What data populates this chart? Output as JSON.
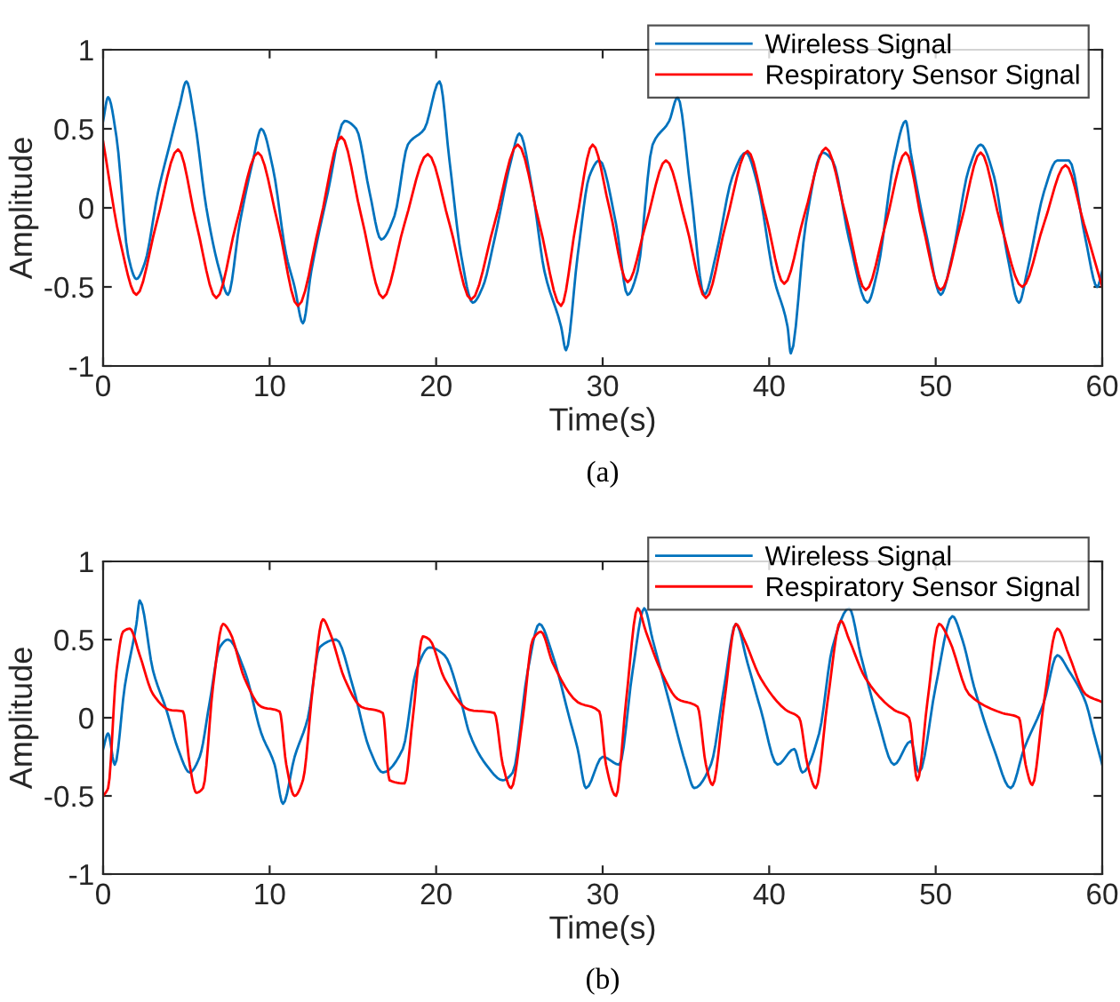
{
  "chart_data": [
    {
      "type": "line",
      "xlabel": "Time(s)",
      "ylabel": "Amplitude",
      "xlim": [
        0,
        60
      ],
      "ylim": [
        -1,
        1
      ],
      "xticks": [
        0,
        10,
        20,
        30,
        40,
        50,
        60
      ],
      "yticks": [
        -1,
        -0.5,
        0,
        0.5,
        1
      ],
      "grid": false,
      "legend": "top right",
      "annotations": [
        "(a)"
      ],
      "series": [
        {
          "name": "Wireless Signal",
          "color": "#0072bd",
          "x": [
            0,
            0.3,
            0.8,
            1.5,
            2,
            2.5,
            3.3,
            4,
            4.6,
            5.0,
            5.5,
            6.2,
            7,
            7.5,
            8.2,
            9,
            9.5,
            10.2,
            11,
            11.5,
            12,
            12.5,
            13.5,
            14.5,
            15.2,
            16,
            16.7,
            17.5,
            18.3,
            19.3,
            20.2,
            20.8,
            21.5,
            22.2,
            22.8,
            23.5,
            24.5,
            25.0,
            25.8,
            26.5,
            27.5,
            27.8,
            28.5,
            29.2,
            29.8,
            30.8,
            31.5,
            32.1,
            33,
            34,
            34.5,
            35.3,
            36.1,
            36.8,
            37.8,
            38.6,
            39.3,
            40.3,
            41.1,
            41.3,
            42.2,
            43.2,
            43.8,
            44.8,
            45.9,
            46.5,
            47.5,
            48.2,
            48.5,
            49.5,
            50.3,
            51,
            52,
            52.7,
            53.5,
            54.3,
            55,
            55.5,
            56.5,
            57.3,
            58,
            59,
            59.7,
            60
          ],
          "values": [
            0.55,
            0.7,
            0.45,
            -0.3,
            -0.45,
            -0.35,
            0.1,
            0.4,
            0.65,
            0.8,
            0.55,
            0,
            -0.4,
            -0.55,
            -0.1,
            0.3,
            0.5,
            0.25,
            -0.3,
            -0.5,
            -0.73,
            -0.4,
            0.1,
            0.55,
            0.5,
            0.1,
            -0.2,
            -0.05,
            0.4,
            0.5,
            0.8,
            0.3,
            -0.3,
            -0.6,
            -0.5,
            -0.2,
            0.3,
            0.47,
            0.1,
            -0.4,
            -0.75,
            -0.9,
            -0.3,
            0.2,
            0.3,
            -0.1,
            -0.55,
            -0.4,
            0.4,
            0.55,
            0.7,
            0.1,
            -0.55,
            -0.3,
            0.2,
            0.35,
            0.15,
            -0.45,
            -0.75,
            -0.92,
            -0.1,
            0.35,
            0.3,
            -0.2,
            -0.6,
            -0.4,
            0.3,
            0.55,
            0.35,
            -0.2,
            -0.55,
            -0.3,
            0.25,
            0.4,
            0.2,
            -0.3,
            -0.6,
            -0.4,
            0.1,
            0.3,
            0.3,
            -0.2,
            -0.5,
            -0.4
          ]
        },
        {
          "name": "Respiratory Sensor Signal",
          "color": "#ff0000",
          "x": [
            0,
            1,
            2,
            3.2,
            4.5,
            5.6,
            6.8,
            8,
            9.3,
            10.5,
            11.7,
            13,
            14.3,
            15.5,
            16.8,
            18.1,
            19.5,
            20.8,
            22.1,
            23.5,
            24.9,
            26.2,
            27.5,
            28.4,
            29.4,
            30.4,
            31.5,
            32.6,
            33.8,
            35,
            36.2,
            37.4,
            38.7,
            39.8,
            40.9,
            42.1,
            43.4,
            44.6,
            45.8,
            47,
            48.2,
            49.2,
            50.3,
            51.5,
            52.7,
            53.9,
            55.2,
            56.5,
            57.8,
            58.9,
            60
          ],
          "values": [
            0.42,
            -0.2,
            -0.55,
            -0.1,
            0.37,
            -0.1,
            -0.57,
            -0.1,
            0.35,
            -0.1,
            -0.62,
            -0.1,
            0.45,
            -0.05,
            -0.57,
            -0.1,
            0.34,
            -0.1,
            -0.58,
            -0.1,
            0.4,
            -0.1,
            -0.62,
            -0.1,
            0.4,
            0,
            -0.47,
            -0.1,
            0.3,
            -0.1,
            -0.57,
            -0.1,
            0.36,
            -0.05,
            -0.48,
            -0.05,
            0.38,
            -0.05,
            -0.52,
            -0.1,
            0.35,
            -0.1,
            -0.52,
            -0.1,
            0.35,
            -0.1,
            -0.5,
            -0.1,
            0.27,
            -0.1,
            -0.5
          ]
        }
      ]
    },
    {
      "type": "line",
      "xlabel": "Time(s)",
      "ylabel": "Amplitude",
      "xlim": [
        0,
        60
      ],
      "ylim": [
        -1,
        1
      ],
      "xticks": [
        0,
        10,
        20,
        30,
        40,
        50,
        60
      ],
      "yticks": [
        -1,
        -0.5,
        0,
        0.5,
        1
      ],
      "grid": false,
      "legend": "top right",
      "annotations": [
        "(b)"
      ],
      "series": [
        {
          "name": "Wireless Signal",
          "color": "#0072bd",
          "x": [
            0,
            0.3,
            0.7,
            1.3,
            2,
            2.2,
            3,
            3.8,
            4.5,
            5.2,
            5.8,
            6.4,
            7,
            7.5,
            8.5,
            9.5,
            10.3,
            10.8,
            11.5,
            12.3,
            13,
            14,
            15,
            16,
            16.8,
            18,
            18.8,
            19.6,
            20.5,
            21.5,
            22,
            23,
            24,
            24.6,
            25.5,
            26.2,
            27,
            28,
            28.5,
            29,
            30,
            31,
            31.8,
            32.5,
            33,
            34,
            35,
            35.5,
            36.5,
            37.3,
            38,
            38.7,
            39.5,
            40.5,
            41.5,
            42,
            43,
            43.8,
            44.8,
            45.5,
            46.5,
            47.5,
            48.5,
            49,
            50,
            51,
            51.6,
            52.3,
            53.5,
            54.5,
            55.3,
            56.5,
            57.3,
            58,
            59,
            59.5,
            60
          ],
          "values": [
            -0.2,
            -0.1,
            -0.3,
            0.2,
            0.6,
            0.75,
            0.3,
            0.05,
            -0.2,
            -0.35,
            -0.25,
            0.1,
            0.45,
            0.5,
            0.3,
            -0.1,
            -0.3,
            -0.55,
            -0.25,
            0,
            0.45,
            0.5,
            0.2,
            -0.2,
            -0.35,
            -0.2,
            0.3,
            0.45,
            0.4,
            0.1,
            -0.1,
            -0.3,
            -0.4,
            -0.35,
            0.3,
            0.6,
            0.4,
            0,
            -0.2,
            -0.45,
            -0.25,
            -0.3,
            0.3,
            0.7,
            0.5,
            0.1,
            -0.3,
            -0.45,
            -0.3,
            0.2,
            0.6,
            0.35,
            0.05,
            -0.3,
            -0.2,
            -0.35,
            -0.1,
            0.45,
            0.7,
            0.4,
            0,
            -0.3,
            -0.15,
            -0.35,
            0.2,
            0.65,
            0.5,
            0.2,
            -0.2,
            -0.45,
            -0.2,
            0.1,
            0.4,
            0.3,
            0.1,
            -0.1,
            -0.3
          ]
        },
        {
          "name": "Respiratory Sensor Signal",
          "color": "#ff0000",
          "x": [
            0,
            0.3,
            0.8,
            1.2,
            1.6,
            2.2,
            3,
            4,
            4.8,
            5.2,
            5.6,
            6,
            6.6,
            7.2,
            7.6,
            8.5,
            9.5,
            10.6,
            11.0,
            11.5,
            12.0,
            12.6,
            13.2,
            13.6,
            14.5,
            15.5,
            16.8,
            17.2,
            18.1,
            18.6,
            19.2,
            19.6,
            20.5,
            22,
            23.5,
            24.0,
            24.5,
            25.2,
            25.8,
            26.3,
            27,
            28.5,
            29.8,
            30.2,
            30.8,
            31.4,
            32.1,
            32.6,
            33.5,
            34.5,
            35.7,
            36.2,
            36.6,
            37.3,
            38,
            38.5,
            39.5,
            41,
            41.8,
            42.3,
            42.8,
            43.5,
            44.3,
            44.8,
            45.8,
            47.5,
            48.4,
            48.9,
            49.5,
            50.2,
            50.8,
            52,
            54,
            55,
            55.4,
            55.8,
            56.5,
            57.3,
            58,
            59,
            60
          ],
          "values": [
            -0.5,
            -0.45,
            0.3,
            0.55,
            0.57,
            0.4,
            0.15,
            0.05,
            0.04,
            -0.3,
            -0.48,
            -0.45,
            0.2,
            0.6,
            0.55,
            0.25,
            0.07,
            0.04,
            -0.3,
            -0.5,
            -0.4,
            0.2,
            0.63,
            0.55,
            0.25,
            0.07,
            0.03,
            -0.4,
            -0.42,
            0.0,
            0.52,
            0.5,
            0.25,
            0.05,
            0.03,
            -0.3,
            -0.45,
            0.0,
            0.5,
            0.55,
            0.35,
            0.1,
            0.04,
            -0.3,
            -0.5,
            0.1,
            0.7,
            0.55,
            0.3,
            0.12,
            0.07,
            -0.3,
            -0.43,
            0.1,
            0.6,
            0.5,
            0.25,
            0.05,
            0.0,
            -0.3,
            -0.45,
            0.1,
            0.62,
            0.5,
            0.25,
            0.05,
            0.0,
            -0.4,
            0.1,
            0.6,
            0.5,
            0.15,
            0.03,
            0.0,
            -0.3,
            -0.43,
            0.1,
            0.57,
            0.4,
            0.15,
            0.1
          ]
        }
      ]
    }
  ]
}
